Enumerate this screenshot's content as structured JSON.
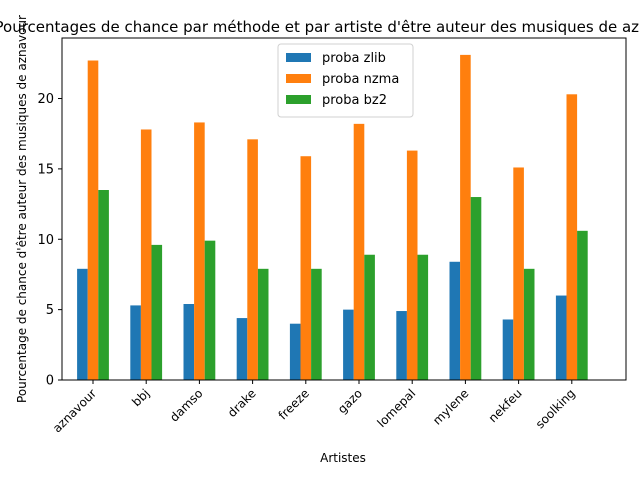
{
  "chart_data": {
    "type": "bar",
    "title": "Pourcentages de chance par méthode et par artiste d'être auteur des musiques de aznavour",
    "xlabel": "Artistes",
    "ylabel": "Pourcentage de chance d'être auteur des musiques de aznavour",
    "categories": [
      "aznavour",
      "bbj",
      "damso",
      "drake",
      "freeze",
      "gazo",
      "lomepal",
      "mylene",
      "nekfeu",
      "soolking"
    ],
    "ylim": [
      0,
      24.3
    ],
    "yticks": [
      0,
      5,
      10,
      15,
      20
    ],
    "grid": false,
    "legend_position": "top-center",
    "series": [
      {
        "name": "proba zlib",
        "color": "#1f77b4",
        "values": [
          7.9,
          5.3,
          5.4,
          4.4,
          4.0,
          5.0,
          4.9,
          8.4,
          4.3,
          6.0
        ]
      },
      {
        "name": "proba nzma",
        "color": "#ff7f0e",
        "values": [
          22.7,
          17.8,
          18.3,
          17.1,
          15.9,
          18.2,
          16.3,
          23.1,
          15.1,
          20.3
        ]
      },
      {
        "name": "proba bz2",
        "color": "#2ca02c",
        "values": [
          13.5,
          9.6,
          9.9,
          7.9,
          7.9,
          8.9,
          8.9,
          13.0,
          7.9,
          10.6
        ]
      }
    ]
  }
}
